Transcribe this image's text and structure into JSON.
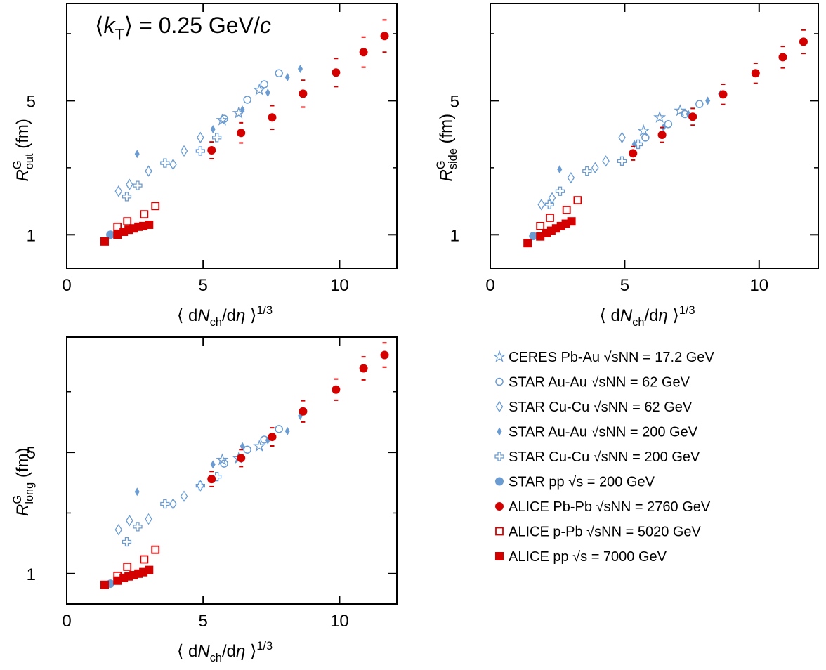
{
  "chart_data": [
    {
      "type": "scatter",
      "annotation": [
        {
          "text": "⟨"
        },
        {
          "text": "k",
          "italic": true
        },
        {
          "text": "T",
          "shift": "sub"
        },
        {
          "text": "⟩ = 0.25 GeV/"
        },
        {
          "text": "c",
          "italic": true
        }
      ],
      "x_label": [
        {
          "text": "⟨ d"
        },
        {
          "text": "N",
          "italic": true
        },
        {
          "text": "ch",
          "shift": "sub"
        },
        {
          "text": "/d"
        },
        {
          "text": "η",
          "italic": true
        },
        {
          "text": " ⟩"
        },
        {
          "text": "1/3",
          "shift": "sup"
        }
      ],
      "y_label": [
        {
          "text": "R",
          "italic": true
        },
        {
          "text": "G",
          "shift": "sup"
        },
        {
          "text": "out",
          "shift": "sub",
          "stack": true
        },
        {
          "text": " (fm)"
        }
      ],
      "xlim": [
        0,
        12.1
      ],
      "xticks": [
        0,
        5,
        10
      ],
      "ylim": [
        0,
        7.9
      ],
      "yticks": [
        1,
        5
      ],
      "yminor": [
        3,
        7
      ],
      "series": [
        {
          "name": "CERES Pb-Au √sNN = 17.2 GeV",
          "color": "#6a9bd1",
          "marker": "star-open",
          "x": [
            5.7,
            6.3,
            7.06
          ],
          "values": [
            4.42,
            4.63,
            5.32
          ]
        },
        {
          "name": "STAR Au-Au √sNN = 62 GeV",
          "color": "#6a9bd1",
          "marker": "circle-open",
          "x": [
            5.77,
            6.62,
            7.24,
            7.78
          ],
          "values": [
            4.46,
            5.03,
            5.49,
            5.82
          ]
        },
        {
          "name": "STAR Cu-Cu √sNN = 62 GeV",
          "color": "#6a9bd1",
          "marker": "diamond-open",
          "x": [
            1.9,
            2.3,
            3.0,
            3.9,
            4.3,
            4.9
          ],
          "values": [
            2.3,
            2.5,
            2.9,
            3.1,
            3.5,
            3.9
          ]
        },
        {
          "name": "STAR Au-Au √sNN = 200 GeV",
          "color": "#6a9bd1",
          "marker": "diamond",
          "x": [
            2.58,
            5.36,
            6.44,
            7.37,
            8.09,
            8.56
          ],
          "values": [
            3.41,
            4.15,
            4.73,
            5.24,
            5.7,
            5.95
          ]
        },
        {
          "name": "STAR Cu-Cu √sNN = 200 GeV",
          "color": "#6a9bd1",
          "marker": "cross-open",
          "x": [
            2.2,
            2.6,
            3.6,
            4.9,
            5.5
          ],
          "values": [
            2.14,
            2.47,
            3.14,
            3.5,
            3.9
          ]
        },
        {
          "name": "STAR pp √s = 200 GeV",
          "color": "#6a9bd1",
          "marker": "circle",
          "x": [
            1.6
          ],
          "values": [
            1.0
          ]
        },
        {
          "name": "ALICE Pb-Pb √sNN = 2760 GeV",
          "color": "#d40000",
          "marker": "circle",
          "x": [
            5.31,
            6.39,
            7.53,
            8.66,
            9.87,
            10.88,
            11.65
          ],
          "values": [
            3.52,
            4.04,
            4.5,
            5.21,
            5.84,
            6.45,
            6.93
          ],
          "errors": [
            0.25,
            0.3,
            0.35,
            0.4,
            0.42,
            0.45,
            0.48
          ]
        },
        {
          "name": "ALICE p-Pb √sNN = 5020 GeV",
          "color": "#d40000",
          "marker": "square-open",
          "x": [
            1.86,
            2.22,
            2.84,
            3.25
          ],
          "values": [
            1.24,
            1.4,
            1.61,
            1.86
          ]
        },
        {
          "name": "ALICE pp √s = 7000 GeV",
          "color": "#d40000",
          "marker": "square",
          "x": [
            1.39,
            1.86,
            2.09,
            2.27,
            2.45,
            2.63,
            2.81,
            3.02
          ],
          "values": [
            0.8,
            1.0,
            1.09,
            1.15,
            1.19,
            1.24,
            1.26,
            1.3
          ]
        }
      ]
    },
    {
      "type": "scatter",
      "x_label": [
        {
          "text": "⟨ d"
        },
        {
          "text": "N",
          "italic": true
        },
        {
          "text": "ch",
          "shift": "sub"
        },
        {
          "text": "/d"
        },
        {
          "text": "η",
          "italic": true
        },
        {
          "text": " ⟩"
        },
        {
          "text": "1/3",
          "shift": "sup"
        }
      ],
      "y_label": [
        {
          "text": "R",
          "italic": true
        },
        {
          "text": "G",
          "shift": "sup"
        },
        {
          "text": "side",
          "shift": "sub",
          "stack": true
        },
        {
          "text": " (fm)"
        }
      ],
      "xlim": [
        0,
        12.2
      ],
      "xticks": [
        0,
        5,
        10
      ],
      "ylim": [
        0,
        7.9
      ],
      "yticks": [
        1,
        5
      ],
      "yminor": [
        3,
        7
      ],
      "series": [
        {
          "color": "#6a9bd1",
          "marker": "star-open",
          "x": [
            5.7,
            6.3,
            7.06
          ],
          "values": [
            4.1,
            4.5,
            4.7
          ]
        },
        {
          "color": "#6a9bd1",
          "marker": "circle-open",
          "x": [
            5.77,
            6.62,
            7.24,
            7.78
          ],
          "values": [
            3.9,
            4.3,
            4.6,
            4.9
          ]
        },
        {
          "color": "#6a9bd1",
          "marker": "diamond-open",
          "x": [
            1.9,
            2.3,
            3.0,
            3.9,
            4.3,
            4.9
          ],
          "values": [
            1.9,
            2.1,
            2.7,
            3.0,
            3.2,
            3.9
          ]
        },
        {
          "color": "#6a9bd1",
          "marker": "diamond",
          "x": [
            2.58,
            5.36,
            6.44,
            7.37,
            8.09,
            8.56
          ],
          "values": [
            2.95,
            3.7,
            4.2,
            4.6,
            5.0,
            5.2
          ]
        },
        {
          "color": "#6a9bd1",
          "marker": "cross-open",
          "x": [
            2.2,
            2.6,
            3.6,
            4.9,
            5.5
          ],
          "values": [
            1.9,
            2.3,
            2.9,
            3.2,
            3.7
          ]
        },
        {
          "color": "#6a9bd1",
          "marker": "circle",
          "x": [
            1.6
          ],
          "values": [
            0.96
          ]
        },
        {
          "color": "#d40000",
          "marker": "circle",
          "x": [
            5.31,
            6.39,
            7.53,
            8.66,
            9.87,
            10.88,
            11.65
          ],
          "values": [
            3.43,
            3.98,
            4.52,
            5.19,
            5.82,
            6.3,
            6.76
          ],
          "errors": [
            0.2,
            0.22,
            0.25,
            0.3,
            0.3,
            0.32,
            0.35
          ]
        },
        {
          "color": "#d40000",
          "marker": "square-open",
          "x": [
            1.86,
            2.22,
            2.84,
            3.25
          ],
          "values": [
            1.26,
            1.51,
            1.74,
            2.03
          ]
        },
        {
          "color": "#d40000",
          "marker": "square",
          "x": [
            1.39,
            1.86,
            2.09,
            2.27,
            2.45,
            2.63,
            2.81,
            3.02
          ],
          "values": [
            0.75,
            0.95,
            1.05,
            1.12,
            1.19,
            1.26,
            1.33,
            1.4
          ]
        }
      ]
    },
    {
      "type": "scatter",
      "x_label": [
        {
          "text": "⟨ d"
        },
        {
          "text": "N",
          "italic": true
        },
        {
          "text": "ch",
          "shift": "sub"
        },
        {
          "text": "/d"
        },
        {
          "text": "η",
          "italic": true
        },
        {
          "text": " ⟩"
        },
        {
          "text": "1/3",
          "shift": "sup"
        }
      ],
      "y_label": [
        {
          "text": "R",
          "italic": true
        },
        {
          "text": "G",
          "shift": "sup"
        },
        {
          "text": "long",
          "shift": "sub",
          "stack": true
        },
        {
          "text": " (fm)"
        }
      ],
      "xlim": [
        0,
        12.1
      ],
      "xticks": [
        0,
        5,
        10
      ],
      "ylim": [
        0,
        8.8
      ],
      "yticks": [
        1,
        5
      ],
      "yminor": [
        3,
        7
      ],
      "series": [
        {
          "color": "#6a9bd1",
          "marker": "star-open",
          "x": [
            5.7,
            6.3,
            7.06
          ],
          "values": [
            4.75,
            4.8,
            5.2
          ]
        },
        {
          "color": "#6a9bd1",
          "marker": "circle-open",
          "x": [
            5.77,
            6.62,
            7.24,
            7.78
          ],
          "values": [
            4.63,
            5.09,
            5.42,
            5.77
          ]
        },
        {
          "color": "#6a9bd1",
          "marker": "diamond-open",
          "x": [
            1.9,
            2.3,
            3.0,
            3.9,
            4.3,
            4.9
          ],
          "values": [
            2.45,
            2.75,
            2.8,
            3.3,
            3.55,
            3.9
          ]
        },
        {
          "color": "#6a9bd1",
          "marker": "diamond",
          "x": [
            2.58,
            5.36,
            6.44,
            7.37,
            8.09,
            8.56
          ],
          "values": [
            3.7,
            4.6,
            5.2,
            5.4,
            5.7,
            6.2
          ]
        },
        {
          "color": "#6a9bd1",
          "marker": "cross-open",
          "x": [
            2.2,
            2.6,
            3.6,
            4.9,
            5.5
          ],
          "values": [
            2.05,
            2.55,
            3.3,
            3.9,
            4.2
          ]
        },
        {
          "color": "#6a9bd1",
          "marker": "circle",
          "x": [
            1.6
          ],
          "values": [
            0.67
          ]
        },
        {
          "color": "#d40000",
          "marker": "circle",
          "x": [
            5.31,
            6.39,
            7.53,
            8.66,
            9.87,
            10.88,
            11.65
          ],
          "values": [
            4.12,
            4.81,
            5.51,
            6.35,
            7.07,
            7.77,
            8.21
          ],
          "errors": [
            0.25,
            0.28,
            0.3,
            0.35,
            0.35,
            0.38,
            0.4
          ]
        },
        {
          "color": "#d40000",
          "marker": "square-open",
          "x": [
            1.86,
            2.22,
            2.84,
            3.25
          ],
          "values": [
            0.93,
            1.23,
            1.47,
            1.79
          ]
        },
        {
          "color": "#d40000",
          "marker": "square",
          "x": [
            1.39,
            1.86,
            2.09,
            2.27,
            2.45,
            2.63,
            2.81,
            3.02
          ],
          "values": [
            0.63,
            0.77,
            0.86,
            0.91,
            0.95,
            1.0,
            1.05,
            1.12
          ]
        }
      ]
    }
  ]
}
